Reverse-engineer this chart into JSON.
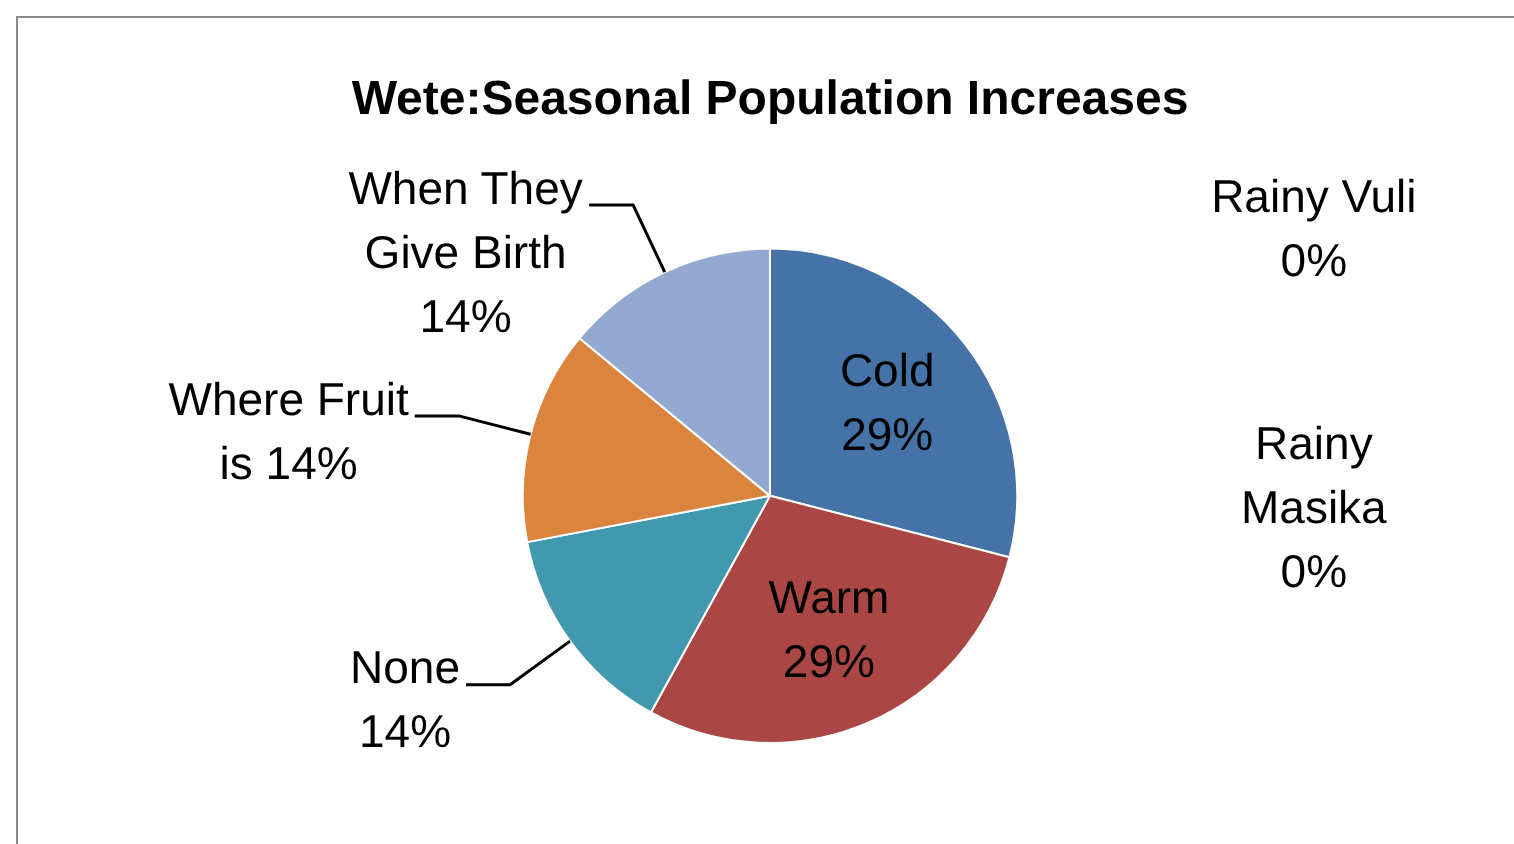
{
  "chart_data": {
    "type": "pie",
    "title": "Wete:Seasonal Population Increases",
    "categories": [
      "Cold",
      "Warm",
      "Rainy Vuli",
      "Rainy Masika",
      "None",
      "Where Fruit is",
      "When They Give Birth"
    ],
    "values": [
      29,
      29,
      0,
      0,
      14,
      14,
      14
    ],
    "colors": [
      "#4572a7",
      "#aa4643",
      "#89a54e",
      "#71588f",
      "#4198af",
      "#db843d",
      "#93a9cf"
    ],
    "value_labels": [
      "29%",
      "29%",
      "0%",
      "0%",
      "14%",
      "14%",
      "14%"
    ]
  }
}
